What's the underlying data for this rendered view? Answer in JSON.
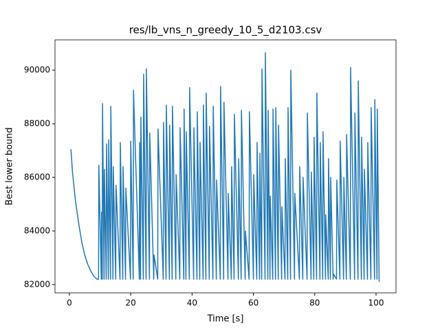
{
  "chart_data": {
    "type": "line",
    "title": "res/lb_vns_n_greedy_10_5_d2103.csv",
    "x_label": "Time [s]",
    "y_label": "Best lower bound",
    "color": "#1f77b4",
    "xlim": [
      -4.7,
      106.5
    ],
    "ylim": [
      81690,
      91130
    ],
    "xticks": [
      0,
      20,
      40,
      60,
      80,
      100
    ],
    "yticks": [
      82000,
      84000,
      86000,
      88000,
      90000
    ],
    "x": [
      0.5,
      1,
      2,
      3,
      4,
      5,
      6,
      7,
      8,
      9,
      9.5,
      9.6,
      10.4,
      10.5,
      10.7,
      10.8,
      11.3,
      11.4,
      12.0,
      12.1,
      12.7,
      12.8,
      13.4,
      13.5,
      14.2,
      14.3,
      15.1,
      15.2,
      16.5,
      16.6,
      17.4,
      17.5,
      18.3,
      18.4,
      19.9,
      20.0,
      20.8,
      20.9,
      22.8,
      22.9,
      23.2,
      23.3,
      24.1,
      24.2,
      25.0,
      25.1,
      26.1,
      26.2,
      27.5,
      27.6,
      28.8,
      28.9,
      30.6,
      30.7,
      31.5,
      31.6,
      32.6,
      32.7,
      33.5,
      33.6,
      34.7,
      34.8,
      36.0,
      36.1,
      37.3,
      37.4,
      38.0,
      38.1,
      39.1,
      39.2,
      40.5,
      40.6,
      41.6,
      41.7,
      42.5,
      42.6,
      43.6,
      43.7,
      44.5,
      44.6,
      45.6,
      45.7,
      46.8,
      46.9,
      47.9,
      48.0,
      49.2,
      49.3,
      50.3,
      50.4,
      51.7,
      51.8,
      52.8,
      52.9,
      53.7,
      53.8,
      55.1,
      55.2,
      56.0,
      56.1,
      57.3,
      57.4,
      58.6,
      58.7,
      60.0,
      60.1,
      61.1,
      61.2,
      62.0,
      62.1,
      62.7,
      62.8,
      63.8,
      63.9,
      64.7,
      64.8,
      65.4,
      65.5,
      66.3,
      66.4,
      67.2,
      67.3,
      68.1,
      68.2,
      69.2,
      69.3,
      70.3,
      70.4,
      71.2,
      71.3,
      72.1,
      72.2,
      73.4,
      73.5,
      75.0,
      75.1,
      76.1,
      76.2,
      77.5,
      77.6,
      78.8,
      78.9,
      79.7,
      79.8,
      80.6,
      80.7,
      81.7,
      81.8,
      82.6,
      82.7,
      83.5,
      83.6,
      84.4,
      84.5,
      85.1,
      85.2,
      86.0,
      86.1,
      87.1,
      87.2,
      88.2,
      88.3,
      89.4,
      89.5,
      90.3,
      90.4,
      91.6,
      91.7,
      93.0,
      93.1,
      94.1,
      94.2,
      95.2,
      95.3,
      96.1,
      96.2,
      97.2,
      97.3,
      98.3,
      98.4,
      99.5,
      99.6,
      100.3,
      100.4,
      101.0
    ],
    "values": [
      87050,
      86200,
      85100,
      84300,
      83600,
      83100,
      82750,
      82500,
      82300,
      82200,
      82200,
      86450,
      82200,
      84700,
      82200,
      88750,
      82200,
      86300,
      82200,
      87250,
      82200,
      87400,
      82200,
      88650,
      82200,
      86400,
      82200,
      85700,
      82200,
      87300,
      82200,
      86400,
      82200,
      85600,
      82200,
      87350,
      82200,
      89250,
      82200,
      87300,
      82200,
      88250,
      82200,
      89850,
      82200,
      90050,
      82200,
      87650,
      82200,
      83100,
      82200,
      87800,
      82200,
      88050,
      82200,
      88700,
      82200,
      87950,
      82200,
      88650,
      82200,
      86100,
      82200,
      87850,
      82200,
      88550,
      82200,
      87700,
      82200,
      89350,
      82200,
      87850,
      82200,
      88450,
      82200,
      87300,
      82200,
      88700,
      82200,
      89150,
      82200,
      87900,
      82200,
      88650,
      82200,
      85900,
      82200,
      89400,
      82200,
      88800,
      82200,
      85400,
      82200,
      86400,
      82200,
      88350,
      82200,
      86700,
      82200,
      88500,
      82200,
      84000,
      82200,
      88450,
      82200,
      86100,
      82200,
      87300,
      82200,
      86900,
      82200,
      90050,
      82200,
      90650,
      82200,
      88500,
      82200,
      85300,
      82200,
      88550,
      82200,
      88600,
      82200,
      87950,
      82200,
      84900,
      82200,
      86700,
      82200,
      88600,
      82200,
      90000,
      82200,
      85400,
      82200,
      86400,
      82200,
      86000,
      82200,
      88400,
      82200,
      86200,
      82200,
      87500,
      82200,
      89150,
      82200,
      87300,
      82200,
      87700,
      82200,
      84600,
      82200,
      86700,
      82200,
      86000,
      82200,
      82400,
      82200,
      85900,
      82200,
      87350,
      82200,
      86000,
      82200,
      87600,
      82200,
      90100,
      82200,
      88400,
      82200,
      89600,
      82200,
      87500,
      82200,
      86300,
      82200,
      87300,
      82200,
      88600,
      82200,
      88900,
      82200,
      88550,
      82100
    ]
  }
}
